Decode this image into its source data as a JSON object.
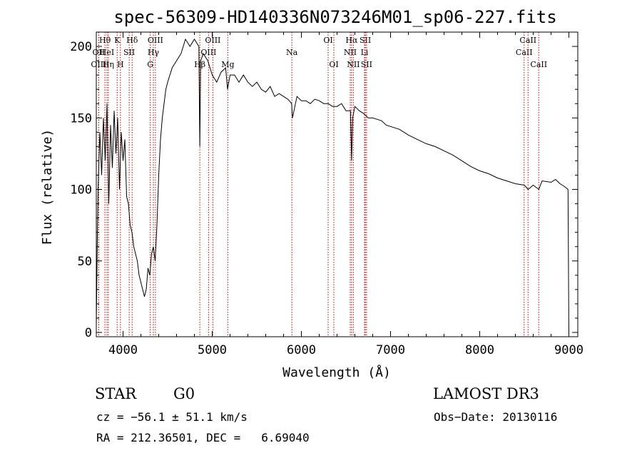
{
  "chart_data": {
    "type": "line",
    "title": "spec-56309-HD140336N073246M01_sp06-227.fits",
    "xlabel": "Wavelength (Å)",
    "ylabel": "Flux (relative)",
    "xlim": [
      3700,
      9100
    ],
    "ylim": [
      -3,
      210
    ],
    "xticks": [
      4000,
      5000,
      6000,
      7000,
      8000,
      9000
    ],
    "yticks": [
      0,
      50,
      100,
      150,
      200
    ],
    "grid": false,
    "series": [
      {
        "name": "flux",
        "x": [
          3700,
          3710,
          3720,
          3740,
          3760,
          3780,
          3800,
          3820,
          3840,
          3860,
          3880,
          3900,
          3920,
          3940,
          3960,
          3980,
          4000,
          4020,
          4040,
          4060,
          4080,
          4100,
          4120,
          4140,
          4160,
          4180,
          4200,
          4220,
          4240,
          4260,
          4280,
          4300,
          4320,
          4340,
          4360,
          4380,
          4400,
          4420,
          4440,
          4460,
          4480,
          4500,
          4550,
          4600,
          4650,
          4700,
          4750,
          4800,
          4850,
          4861,
          4870,
          4900,
          4950,
          5000,
          5050,
          5100,
          5150,
          5172,
          5200,
          5250,
          5300,
          5350,
          5400,
          5450,
          5500,
          5550,
          5600,
          5650,
          5700,
          5750,
          5800,
          5850,
          5890,
          5900,
          5950,
          6000,
          6050,
          6100,
          6150,
          6200,
          6250,
          6300,
          6350,
          6400,
          6450,
          6500,
          6550,
          6563,
          6575,
          6600,
          6650,
          6700,
          6750,
          6800,
          6850,
          6900,
          6950,
          7000,
          7100,
          7200,
          7300,
          7400,
          7500,
          7600,
          7700,
          7800,
          7900,
          8000,
          8100,
          8200,
          8300,
          8400,
          8500,
          8542,
          8600,
          8662,
          8700,
          8800,
          8850,
          8900,
          8950,
          8990,
          9000
        ],
        "y": [
          5,
          60,
          100,
          140,
          110,
          150,
          120,
          160,
          90,
          145,
          115,
          155,
          125,
          150,
          100,
          140,
          120,
          135,
          95,
          90,
          75,
          70,
          60,
          55,
          50,
          40,
          35,
          30,
          25,
          30,
          45,
          40,
          55,
          60,
          50,
          75,
          110,
          135,
          150,
          160,
          170,
          175,
          185,
          190,
          195,
          205,
          200,
          205,
          200,
          130,
          190,
          195,
          190,
          180,
          175,
          182,
          185,
          170,
          180,
          180,
          175,
          180,
          175,
          172,
          175,
          170,
          168,
          172,
          165,
          167,
          165,
          163,
          160,
          150,
          165,
          162,
          162,
          160,
          163,
          162,
          160,
          160,
          158,
          158,
          160,
          155,
          155,
          120,
          150,
          158,
          155,
          153,
          150,
          150,
          149,
          148,
          145,
          144,
          142,
          138,
          135,
          132,
          130,
          127,
          124,
          120,
          116,
          113,
          111,
          108,
          106,
          104,
          103,
          100,
          103,
          100,
          106,
          105,
          107,
          104,
          102,
          100,
          -3
        ]
      }
    ],
    "lines": [
      {
        "name": "OII",
        "x": 3727,
        "row": 1,
        "color": "#c00000"
      },
      {
        "name": "OIII",
        "x": 3727,
        "row": 2,
        "color": "#c00000"
      },
      {
        "name": "Hθ",
        "x": 3797,
        "row": 0,
        "color": "#c00000"
      },
      {
        "name": "HeI",
        "x": 3820,
        "row": 1,
        "color": "#c00000"
      },
      {
        "name": "Hη",
        "x": 3835,
        "row": 2,
        "color": "#c00000"
      },
      {
        "name": "K",
        "x": 3934,
        "row": 0,
        "color": "#c00000"
      },
      {
        "name": "SII",
        "x": 4069,
        "row": 1,
        "color": "#c00000"
      },
      {
        "name": "H",
        "x": 3970,
        "row": 2,
        "color": "#c00000"
      },
      {
        "name": "Hδ",
        "x": 4102,
        "row": 0,
        "color": "#c00000"
      },
      {
        "name": "OIII",
        "x": 4363,
        "row": 0,
        "color": "#c00000"
      },
      {
        "name": "Hγ",
        "x": 4340,
        "row": 1,
        "color": "#c00000"
      },
      {
        "name": "G",
        "x": 4305,
        "row": 2,
        "color": "#c00000"
      },
      {
        "name": "Hβ",
        "x": 4861,
        "row": 2,
        "color": "#c00000"
      },
      {
        "name": "OIII",
        "x": 4959,
        "row": 1,
        "color": "#c00000"
      },
      {
        "name": "OIII",
        "x": 5007,
        "row": 0,
        "color": "#c00000"
      },
      {
        "name": "Mg",
        "x": 5175,
        "row": 2,
        "color": "#c00000"
      },
      {
        "name": "Na",
        "x": 5893,
        "row": 1,
        "color": "#c00000"
      },
      {
        "name": "OI",
        "x": 6300,
        "row": 0,
        "color": "#c00000"
      },
      {
        "name": "OI",
        "x": 6364,
        "row": 2,
        "color": "#c00000"
      },
      {
        "name": "NII",
        "x": 6548,
        "row": 1,
        "color": "#c00000"
      },
      {
        "name": "Hα",
        "x": 6563,
        "row": 0,
        "color": "#c00000"
      },
      {
        "name": "NII",
        "x": 6583,
        "row": 2,
        "color": "#c00000"
      },
      {
        "name": "SII",
        "x": 6717,
        "row": 0,
        "color": "#c00000"
      },
      {
        "name": "Li",
        "x": 6708,
        "row": 1,
        "color": "#c00000"
      },
      {
        "name": "SII",
        "x": 6731,
        "row": 2,
        "color": "#c00000"
      },
      {
        "name": "CaII",
        "x": 8498,
        "row": 1,
        "color": "#c00000"
      },
      {
        "name": "CaII",
        "x": 8542,
        "row": 0,
        "color": "#c00000"
      },
      {
        "name": "CaII",
        "x": 8662,
        "row": 2,
        "color": "#c00000"
      }
    ]
  },
  "info": {
    "class_label": "STAR",
    "subclass": "G0",
    "survey": "LAMOST DR3",
    "cz": "cz = −56.1 ± 51.1 km/s",
    "obs_date": "Obs−Date: 20130116",
    "coords": "RA = 212.36501, DEC =   6.69040"
  }
}
